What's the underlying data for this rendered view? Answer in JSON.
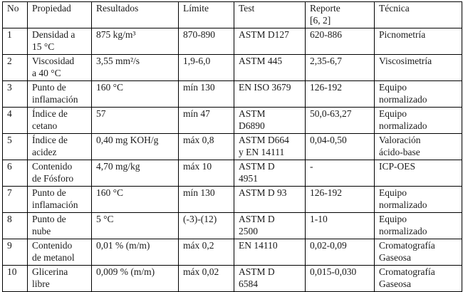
{
  "colors": {
    "text": "#1a1a1a",
    "border": "#000000",
    "background": "#ffffff"
  },
  "table": {
    "columns": [
      "No",
      "Propiedad",
      "Resultados",
      "Límite",
      "Test",
      "Reporte\n[6, 2]",
      "Técnica"
    ],
    "rows": [
      {
        "cells": [
          "1",
          "Densidad a\n15 °C",
          "875 kg/m³",
          "870-890",
          "ASTM D127",
          "620-886",
          "Picnometría"
        ]
      },
      {
        "cells": [
          "2",
          "Viscosidad\na 40 °C",
          "3,55 mm²/s",
          "1,9-6,0",
          "ASTM 445",
          "2,35-6,7",
          "Viscosimetría"
        ]
      },
      {
        "cells": [
          "3",
          "Punto de\ninflamación",
          "160 °C",
          "mín 130",
          "EN ISO 3679",
          "126-192",
          "Equipo\nnormalizado"
        ]
      },
      {
        "cells": [
          "4",
          "Índice de\ncetano",
          "57",
          "mín 47",
          "ASTM\nD6890",
          "50,0-63,27",
          "Equipo\nnormalizado"
        ]
      },
      {
        "cells": [
          "5",
          "Índice de\nacidez",
          "0,40 mg KOH/g",
          "máx 0,8",
          "ASTM D664\ny EN 14111",
          "0,04-0,50",
          "Valoración\nácido-base"
        ]
      },
      {
        "cells": [
          "6",
          "Contenido\nde Fósforo",
          "4,70 mg/kg",
          "máx 10",
          "ASTM D\n4951",
          "-",
          "ICP-OES"
        ]
      },
      {
        "cells": [
          "7",
          "Punto de\ninflamación",
          "160 °C",
          "mín 130",
          "ASTM D 93",
          "126-192",
          "Equipo\nnormalizado"
        ]
      },
      {
        "cells": [
          "8",
          "Punto de\nnube",
          "5 °C",
          "(-3)-(12)",
          "ASTM D\n2500",
          "1-10",
          "Equipo\nnormalizado"
        ]
      },
      {
        "cells": [
          "9",
          "Contenido\nde metanol",
          "0,01 % (m/m)",
          "máx 0,2",
          "EN 14110",
          "0,02-0,09",
          "Cromatografía\nGaseosa"
        ]
      },
      {
        "cells": [
          "10",
          "Glicerina\nlibre",
          "0,009 % (m/m)",
          "máx 0,02",
          "ASTM D\n6584",
          "0,015-0,030",
          "Cromatografía\nGaseosa"
        ]
      }
    ]
  }
}
